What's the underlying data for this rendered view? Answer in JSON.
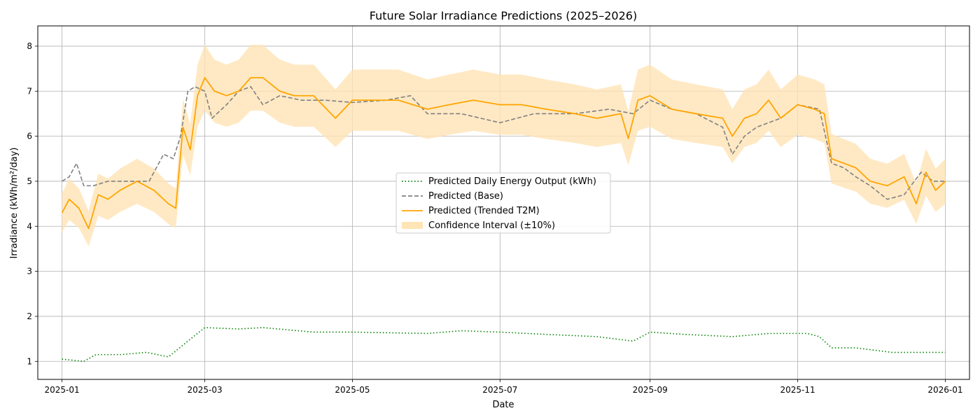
{
  "chart_data": {
    "type": "line",
    "title": "Future Solar Irradiance Predictions (2025–2026)",
    "xlabel": "Date",
    "ylabel": "Irradiance (kWh/m²/day)",
    "x_range": [
      "2024-12-22",
      "2026-01-11"
    ],
    "ylim": [
      0.6,
      8.45
    ],
    "x_ticks": [
      "2025-01",
      "2025-03",
      "2025-05",
      "2025-07",
      "2025-09",
      "2025-11",
      "2026-01"
    ],
    "x_tick_dates": [
      "2025-01-01",
      "2025-03-01",
      "2025-05-01",
      "2025-07-01",
      "2025-09-01",
      "2025-11-01",
      "2026-01-01"
    ],
    "y_ticks": [
      1,
      2,
      3,
      4,
      5,
      6,
      7,
      8
    ],
    "grid": true,
    "legend_position": "center",
    "series": [
      {
        "name": "Predicted Daily Energy Output (kWh)",
        "style": "dotted",
        "color": "#008000",
        "points": [
          [
            "2025-01-01",
            1.05
          ],
          [
            "2025-01-10",
            1.0
          ],
          [
            "2025-01-15",
            1.15
          ],
          [
            "2025-01-25",
            1.15
          ],
          [
            "2025-02-05",
            1.2
          ],
          [
            "2025-02-14",
            1.1
          ],
          [
            "2025-02-22",
            1.45
          ],
          [
            "2025-03-01",
            1.75
          ],
          [
            "2025-03-15",
            1.72
          ],
          [
            "2025-03-25",
            1.75
          ],
          [
            "2025-04-15",
            1.65
          ],
          [
            "2025-05-01",
            1.65
          ],
          [
            "2025-06-01",
            1.62
          ],
          [
            "2025-06-15",
            1.68
          ],
          [
            "2025-07-01",
            1.65
          ],
          [
            "2025-07-20",
            1.6
          ],
          [
            "2025-08-10",
            1.55
          ],
          [
            "2025-08-25",
            1.45
          ],
          [
            "2025-09-01",
            1.65
          ],
          [
            "2025-09-15",
            1.6
          ],
          [
            "2025-10-05",
            1.55
          ],
          [
            "2025-10-20",
            1.62
          ],
          [
            "2025-11-05",
            1.62
          ],
          [
            "2025-11-10",
            1.55
          ],
          [
            "2025-11-15",
            1.3
          ],
          [
            "2025-11-25",
            1.3
          ],
          [
            "2025-12-10",
            1.2
          ],
          [
            "2025-12-20",
            1.2
          ],
          [
            "2026-01-01",
            1.2
          ]
        ]
      },
      {
        "name": "Predicted (Base)",
        "style": "dashed",
        "color": "#808080",
        "points": [
          [
            "2025-01-01",
            5.0
          ],
          [
            "2025-01-04",
            5.1
          ],
          [
            "2025-01-07",
            5.4
          ],
          [
            "2025-01-10",
            4.9
          ],
          [
            "2025-01-14",
            4.9
          ],
          [
            "2025-01-20",
            5.0
          ],
          [
            "2025-01-28",
            5.0
          ],
          [
            "2025-02-06",
            5.0
          ],
          [
            "2025-02-12",
            5.6
          ],
          [
            "2025-02-16",
            5.5
          ],
          [
            "2025-02-19",
            6.0
          ],
          [
            "2025-02-22",
            7.0
          ],
          [
            "2025-02-25",
            7.1
          ],
          [
            "2025-03-01",
            7.0
          ],
          [
            "2025-03-04",
            6.4
          ],
          [
            "2025-03-10",
            6.7
          ],
          [
            "2025-03-15",
            7.0
          ],
          [
            "2025-03-20",
            7.1
          ],
          [
            "2025-03-25",
            6.7
          ],
          [
            "2025-04-01",
            6.9
          ],
          [
            "2025-04-10",
            6.8
          ],
          [
            "2025-04-20",
            6.8
          ],
          [
            "2025-05-01",
            6.75
          ],
          [
            "2025-05-15",
            6.8
          ],
          [
            "2025-05-25",
            6.9
          ],
          [
            "2025-06-01",
            6.5
          ],
          [
            "2025-06-15",
            6.5
          ],
          [
            "2025-07-01",
            6.3
          ],
          [
            "2025-07-15",
            6.5
          ],
          [
            "2025-08-01",
            6.5
          ],
          [
            "2025-08-15",
            6.6
          ],
          [
            "2025-08-25",
            6.5
          ],
          [
            "2025-09-01",
            6.8
          ],
          [
            "2025-09-10",
            6.6
          ],
          [
            "2025-09-20",
            6.5
          ],
          [
            "2025-10-01",
            6.2
          ],
          [
            "2025-10-05",
            5.6
          ],
          [
            "2025-10-10",
            6.0
          ],
          [
            "2025-10-15",
            6.2
          ],
          [
            "2025-10-20",
            6.3
          ],
          [
            "2025-10-25",
            6.4
          ],
          [
            "2025-11-01",
            6.7
          ],
          [
            "2025-11-10",
            6.6
          ],
          [
            "2025-11-15",
            5.4
          ],
          [
            "2025-11-20",
            5.3
          ],
          [
            "2025-11-25",
            5.1
          ],
          [
            "2025-12-01",
            4.9
          ],
          [
            "2025-12-08",
            4.6
          ],
          [
            "2025-12-15",
            4.7
          ],
          [
            "2025-12-22",
            5.2
          ],
          [
            "2025-12-27",
            5.0
          ],
          [
            "2026-01-01",
            5.0
          ]
        ]
      },
      {
        "name": "Predicted (Trended T2M)",
        "style": "solid",
        "color": "#FFA500",
        "points": [
          [
            "2025-01-01",
            4.3
          ],
          [
            "2025-01-04",
            4.6
          ],
          [
            "2025-01-08",
            4.4
          ],
          [
            "2025-01-12",
            3.95
          ],
          [
            "2025-01-16",
            4.7
          ],
          [
            "2025-01-20",
            4.6
          ],
          [
            "2025-01-25",
            4.8
          ],
          [
            "2025-02-01",
            5.0
          ],
          [
            "2025-02-08",
            4.8
          ],
          [
            "2025-02-14",
            4.5
          ],
          [
            "2025-02-17",
            4.4
          ],
          [
            "2025-02-20",
            6.2
          ],
          [
            "2025-02-23",
            5.7
          ],
          [
            "2025-02-26",
            6.9
          ],
          [
            "2025-03-01",
            7.3
          ],
          [
            "2025-03-05",
            7.0
          ],
          [
            "2025-03-10",
            6.9
          ],
          [
            "2025-03-15",
            7.0
          ],
          [
            "2025-03-20",
            7.3
          ],
          [
            "2025-03-25",
            7.3
          ],
          [
            "2025-04-01",
            7.0
          ],
          [
            "2025-04-07",
            6.9
          ],
          [
            "2025-04-15",
            6.9
          ],
          [
            "2025-04-24",
            6.4
          ],
          [
            "2025-05-01",
            6.8
          ],
          [
            "2025-05-10",
            6.8
          ],
          [
            "2025-05-20",
            6.8
          ],
          [
            "2025-06-01",
            6.6
          ],
          [
            "2025-06-10",
            6.7
          ],
          [
            "2025-06-20",
            6.8
          ],
          [
            "2025-07-01",
            6.7
          ],
          [
            "2025-07-10",
            6.7
          ],
          [
            "2025-07-20",
            6.6
          ],
          [
            "2025-08-01",
            6.5
          ],
          [
            "2025-08-10",
            6.4
          ],
          [
            "2025-08-20",
            6.5
          ],
          [
            "2025-08-23",
            5.95
          ],
          [
            "2025-08-27",
            6.8
          ],
          [
            "2025-09-01",
            6.9
          ],
          [
            "2025-09-10",
            6.6
          ],
          [
            "2025-09-20",
            6.5
          ],
          [
            "2025-10-01",
            6.4
          ],
          [
            "2025-10-05",
            6.0
          ],
          [
            "2025-10-10",
            6.4
          ],
          [
            "2025-10-15",
            6.5
          ],
          [
            "2025-10-20",
            6.8
          ],
          [
            "2025-10-25",
            6.4
          ],
          [
            "2025-11-01",
            6.7
          ],
          [
            "2025-11-08",
            6.6
          ],
          [
            "2025-11-12",
            6.5
          ],
          [
            "2025-11-15",
            5.5
          ],
          [
            "2025-11-20",
            5.4
          ],
          [
            "2025-11-25",
            5.3
          ],
          [
            "2025-12-01",
            5.0
          ],
          [
            "2025-12-08",
            4.9
          ],
          [
            "2025-12-15",
            5.1
          ],
          [
            "2025-12-20",
            4.5
          ],
          [
            "2025-12-24",
            5.2
          ],
          [
            "2025-12-28",
            4.8
          ],
          [
            "2026-01-01",
            5.0
          ]
        ]
      },
      {
        "name": "Confidence Interval (±10%)",
        "type": "band",
        "color": "#FFE4B5"
      }
    ]
  }
}
